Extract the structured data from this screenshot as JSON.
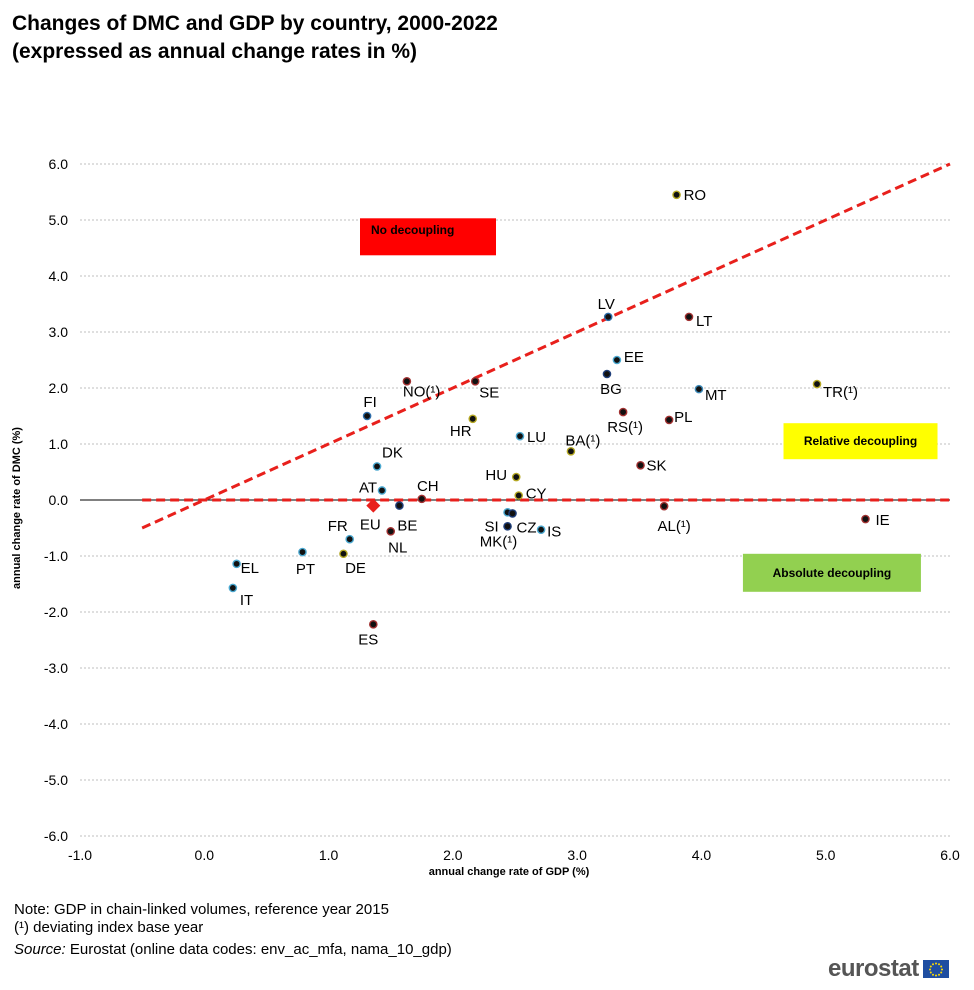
{
  "title": {
    "line1": "Changes of DMC and GDP by country, 2000-2022",
    "line2": "(expressed as annual change rates in %)"
  },
  "notes": {
    "line1": "Note: GDP in chain-linked volumes, reference year 2015",
    "line2": "(¹) deviating index base year",
    "source_prefix": "Source:",
    "source_text": "Eurostat (online data codes: env_ac_mfa, nama_10_gdp)"
  },
  "logo": {
    "text": "eurostat",
    "icon": "eu-flag-icon"
  },
  "chart_data": {
    "type": "scatter",
    "xlabel": "annual change rate of GDP (%)",
    "ylabel": "annual change rate of DMC (%)",
    "xlim": [
      -1.0,
      6.0
    ],
    "ylim": [
      -6.0,
      6.0
    ],
    "xticks": [
      "-1.0",
      "0.0",
      "1.0",
      "2.0",
      "3.0",
      "4.0",
      "5.0",
      "6.0"
    ],
    "yticks": [
      "6.0",
      "5.0",
      "4.0",
      "3.0",
      "2.0",
      "1.0",
      "0.0",
      "-1.0",
      "-2.0",
      "-3.0",
      "-4.0",
      "-5.0",
      "-6.0"
    ],
    "grid": "horizontal",
    "reference_lines": [
      {
        "kind": "diagonal",
        "from": [
          -0.5,
          -0.5
        ],
        "to": [
          6.0,
          6.0
        ],
        "color": "#e8201c",
        "style": "dashed"
      },
      {
        "kind": "horizontal",
        "from": [
          -0.5,
          0.0
        ],
        "to": [
          6.0,
          0.0
        ],
        "color": "#e8201c",
        "style": "dashed"
      }
    ],
    "annotations": [
      {
        "text": "No decoupling",
        "color": "#ff0000",
        "center": [
          1.8,
          4.7
        ]
      },
      {
        "text": "Relative decoupling",
        "color": "#ffff00",
        "center": [
          5.28,
          1.05
        ]
      },
      {
        "text": "Absolute decoupling",
        "color": "#92d050",
        "center": [
          5.05,
          -1.3
        ]
      }
    ],
    "points": [
      {
        "label": "RO",
        "x": 3.8,
        "y": 5.45,
        "color": "#b5a824"
      },
      {
        "label": "LV",
        "x": 3.25,
        "y": 3.27,
        "color": "#2d6ca8"
      },
      {
        "label": "LT",
        "x": 3.9,
        "y": 3.27,
        "color": "#a03030"
      },
      {
        "label": "EE",
        "x": 3.32,
        "y": 2.5,
        "color": "#4aa8d0"
      },
      {
        "label": "BG",
        "x": 3.24,
        "y": 2.25,
        "color": "#1f3f7a"
      },
      {
        "label": "MT",
        "x": 3.98,
        "y": 1.98,
        "color": "#3e8ab8"
      },
      {
        "label": "TR(¹)",
        "x": 4.93,
        "y": 2.07,
        "color": "#b5a824"
      },
      {
        "label": "NO(¹)",
        "x": 1.63,
        "y": 2.12,
        "color": "#a03030"
      },
      {
        "label": "SE",
        "x": 2.18,
        "y": 2.12,
        "color": "#a03030"
      },
      {
        "label": "FI",
        "x": 1.31,
        "y": 1.5,
        "color": "#2d6ca8"
      },
      {
        "label": "RS(¹)",
        "x": 3.37,
        "y": 1.57,
        "color": "#a03030"
      },
      {
        "label": "PL",
        "x": 3.74,
        "y": 1.43,
        "color": "#a03030"
      },
      {
        "label": "HR",
        "x": 2.16,
        "y": 1.45,
        "color": "#b5a824"
      },
      {
        "label": "LU",
        "x": 2.54,
        "y": 1.14,
        "color": "#4aa8d0"
      },
      {
        "label": "BA(¹)",
        "x": 2.95,
        "y": 0.87,
        "color": "#b5a824"
      },
      {
        "label": "DK",
        "x": 1.39,
        "y": 0.6,
        "color": "#4aa8d0"
      },
      {
        "label": "SK",
        "x": 3.51,
        "y": 0.62,
        "color": "#a03030"
      },
      {
        "label": "HU",
        "x": 2.51,
        "y": 0.41,
        "color": "#b5a824"
      },
      {
        "label": "AT",
        "x": 1.43,
        "y": 0.17,
        "color": "#4aa8d0"
      },
      {
        "label": "CH",
        "x": 1.75,
        "y": 0.02,
        "color": "#a03030"
      },
      {
        "label": "CY",
        "x": 2.53,
        "y": 0.08,
        "color": "#b5a824"
      },
      {
        "label": "EU",
        "x": 1.36,
        "y": -0.1,
        "color": "#e8201c",
        "marker": "diamond"
      },
      {
        "label": "BE",
        "x": 1.57,
        "y": -0.1,
        "color": "#1f3f7a"
      },
      {
        "label": "SI",
        "x": 2.44,
        "y": -0.22,
        "color": "#4aa8d0"
      },
      {
        "label": "CZ",
        "x": 2.48,
        "y": -0.24,
        "color": "#1f3f7a"
      },
      {
        "label": "AL(¹)",
        "x": 3.7,
        "y": -0.11,
        "color": "#a03030"
      },
      {
        "label": "IE",
        "x": 5.32,
        "y": -0.34,
        "color": "#a03030"
      },
      {
        "label": "MK(¹)",
        "x": 2.44,
        "y": -0.47,
        "color": "#1f3f7a"
      },
      {
        "label": "IS",
        "x": 2.71,
        "y": -0.53,
        "color": "#4aa8d0"
      },
      {
        "label": "NL",
        "x": 1.5,
        "y": -0.56,
        "color": "#a03030"
      },
      {
        "label": "FR",
        "x": 1.17,
        "y": -0.7,
        "color": "#4aa8d0"
      },
      {
        "label": "PT",
        "x": 0.79,
        "y": -0.93,
        "color": "#4aa8d0"
      },
      {
        "label": "DE",
        "x": 1.12,
        "y": -0.96,
        "color": "#b5a824"
      },
      {
        "label": "EL",
        "x": 0.26,
        "y": -1.14,
        "color": "#4aa8d0"
      },
      {
        "label": "IT",
        "x": 0.23,
        "y": -1.57,
        "color": "#4aa8d0"
      },
      {
        "label": "ES",
        "x": 1.36,
        "y": -2.22,
        "color": "#a03030"
      }
    ]
  }
}
